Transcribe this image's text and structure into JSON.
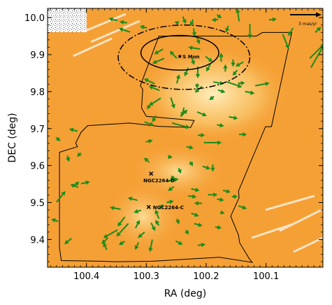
{
  "chart_data": {
    "type": "scatter",
    "title": "",
    "xlabel": "RA (deg)",
    "ylabel": "DEC (deg)",
    "xlim": [
      100.465,
      100.005
    ],
    "ylim": [
      9.325,
      10.025
    ],
    "x_inverted": true,
    "x_ticks": [
      100.4,
      100.3,
      100.2,
      100.1
    ],
    "x_tick_labels": [
      "100.4",
      "100.3",
      "100.2",
      "100.1"
    ],
    "y_ticks": [
      9.4,
      9.5,
      9.6,
      9.7,
      9.8,
      9.9,
      10.0
    ],
    "y_tick_labels": [
      "9.4",
      "9.5",
      "9.6",
      "9.7",
      "9.8",
      "9.9",
      "10.0"
    ],
    "colors": {
      "background_map": "#f5a035",
      "map_highlight": "#fde6a0",
      "arrows": "#1a8c1a",
      "outline": "#000000"
    },
    "scale_bar": {
      "label": "3 mas/yr",
      "length_masyr": 3
    },
    "annotations": [
      {
        "label": "S Mon",
        "ra": 100.244,
        "dec": 9.895,
        "marker": "star"
      },
      {
        "label": "NGC2264-D",
        "ra": 100.292,
        "dec": 9.578,
        "marker": "x"
      },
      {
        "label": "NGC2264-C",
        "ra": 100.296,
        "dec": 9.488,
        "marker": "x"
      }
    ],
    "ellipses": [
      {
        "name": "inner",
        "ra_center": 100.244,
        "dec_center": 9.905,
        "ra_radius": 0.065,
        "dec_radius": 0.047,
        "style": "solid"
      },
      {
        "name": "outer",
        "ra_center": 100.237,
        "dec_center": 9.893,
        "ra_radius": 0.11,
        "dec_radius": 0.087,
        "style": "dashdot"
      }
    ],
    "coverage_outline": [
      [
        100.279,
        9.95
      ],
      [
        100.117,
        9.95
      ],
      [
        100.116,
        9.95
      ],
      [
        100.106,
        9.96
      ],
      [
        100.057,
        9.96
      ],
      [
        100.091,
        9.705
      ],
      [
        100.101,
        9.705
      ],
      [
        100.146,
        9.531
      ],
      [
        100.145,
        9.513
      ],
      [
        100.159,
        9.463
      ],
      [
        100.146,
        9.412
      ],
      [
        100.144,
        9.391
      ],
      [
        100.128,
        9.348
      ],
      [
        100.123,
        9.338
      ],
      [
        100.178,
        9.352
      ],
      [
        100.291,
        9.341
      ],
      [
        100.352,
        9.34
      ],
      [
        100.372,
        9.341
      ],
      [
        100.442,
        9.343
      ],
      [
        100.445,
        9.377
      ],
      [
        100.445,
        9.636
      ],
      [
        100.415,
        9.651
      ],
      [
        100.418,
        9.661
      ],
      [
        100.409,
        9.69
      ],
      [
        100.398,
        9.708
      ],
      [
        100.328,
        9.715
      ],
      [
        100.279,
        9.706
      ],
      [
        100.226,
        9.703
      ],
      [
        100.22,
        9.722
      ],
      [
        100.3,
        9.733
      ],
      [
        100.308,
        9.756
      ],
      [
        100.306,
        9.806
      ],
      [
        100.31,
        9.816
      ],
      [
        100.279,
        9.95
      ]
    ],
    "vectors": [
      {
        "ra": 100.239,
        "dec": 10.003,
        "dra": -0.005,
        "ddec": -0.02
      },
      {
        "ra": 100.222,
        "dec": 9.995,
        "dra": 0.004,
        "ddec": -0.018
      },
      {
        "ra": 100.246,
        "dec": 9.985,
        "dra": 0.007,
        "ddec": 0.004
      },
      {
        "ra": 100.221,
        "dec": 9.971,
        "dra": -0.002,
        "ddec": -0.022
      },
      {
        "ra": 100.215,
        "dec": 9.946,
        "dra": -0.004,
        "ddec": -0.018
      },
      {
        "ra": 100.299,
        "dec": 9.972,
        "dra": 0.012,
        "ddec": 0.005
      },
      {
        "ra": 100.327,
        "dec": 9.961,
        "dra": 0.019,
        "ddec": 0.01
      },
      {
        "ra": 100.332,
        "dec": 9.986,
        "dra": 0.013,
        "ddec": 0.003
      },
      {
        "ra": 100.348,
        "dec": 9.992,
        "dra": 0.015,
        "ddec": 0.006
      },
      {
        "ra": 100.182,
        "dec": 10.008,
        "dra": -0.008,
        "ddec": -0.01
      },
      {
        "ra": 100.18,
        "dec": 9.995,
        "dra": 0.011,
        "ddec": -0.002
      },
      {
        "ra": 100.163,
        "dec": 9.978,
        "dra": 0.004,
        "ddec": -0.018
      },
      {
        "ra": 100.145,
        "dec": 9.99,
        "dra": 0.003,
        "ddec": 0.035
      },
      {
        "ra": 100.127,
        "dec": 9.983,
        "dra": 0.0,
        "ddec": -0.04
      },
      {
        "ra": 100.095,
        "dec": 9.994,
        "dra": -0.013,
        "ddec": 0.002
      },
      {
        "ra": 100.055,
        "dec": 9.972,
        "dra": 0.008,
        "ddec": -0.022
      },
      {
        "ra": 100.072,
        "dec": 9.955,
        "dra": -0.01,
        "ddec": -0.04
      },
      {
        "ra": 100.025,
        "dec": 9.865,
        "dra": -0.03,
        "ddec": 0.084
      },
      {
        "ra": 100.027,
        "dec": 9.89,
        "dra": -0.025,
        "ddec": 0.04
      },
      {
        "ra": 100.018,
        "dec": 9.96,
        "dra": -0.01,
        "ddec": 0.015
      },
      {
        "ra": 100.27,
        "dec": 9.89,
        "dra": 0.02,
        "ddec": -0.014
      },
      {
        "ra": 100.272,
        "dec": 9.915,
        "dra": 0.015,
        "ddec": -0.014
      },
      {
        "ra": 100.249,
        "dec": 9.89,
        "dra": 0.012,
        "ddec": 0.02
      },
      {
        "ra": 100.224,
        "dec": 9.892,
        "dra": -0.004,
        "ddec": -0.02
      },
      {
        "ra": 100.21,
        "dec": 9.915,
        "dra": 0.02,
        "ddec": 0.005
      },
      {
        "ra": 100.201,
        "dec": 9.895,
        "dra": -0.012,
        "ddec": -0.015
      },
      {
        "ra": 100.193,
        "dec": 9.874,
        "dra": 0.007,
        "ddec": -0.02
      },
      {
        "ra": 100.23,
        "dec": 9.865,
        "dra": 0.006,
        "ddec": -0.024
      },
      {
        "ra": 100.214,
        "dec": 9.868,
        "dra": 0.0,
        "ddec": -0.032
      },
      {
        "ra": 100.155,
        "dec": 9.887,
        "dra": 0.0,
        "ddec": -0.02
      },
      {
        "ra": 100.138,
        "dec": 9.88,
        "dra": 0.013,
        "ddec": -0.012
      },
      {
        "ra": 100.175,
        "dec": 9.881,
        "dra": 0.0,
        "ddec": 0.024
      },
      {
        "ra": 100.148,
        "dec": 9.858,
        "dra": 0.008,
        "ddec": -0.015
      },
      {
        "ra": 100.168,
        "dec": 9.854,
        "dra": 0.0,
        "ddec": 0.02
      },
      {
        "ra": 100.249,
        "dec": 9.822,
        "dra": -0.004,
        "ddec": 0.025
      },
      {
        "ra": 100.278,
        "dec": 9.803,
        "dra": 0.018,
        "ddec": 0.012
      },
      {
        "ra": 100.286,
        "dec": 9.821,
        "dra": 0.018,
        "ddec": 0.014
      },
      {
        "ra": 100.215,
        "dec": 9.822,
        "dra": 0.0,
        "ddec": -0.014
      },
      {
        "ra": 100.207,
        "dec": 9.814,
        "dra": 0.012,
        "ddec": -0.017
      },
      {
        "ra": 100.188,
        "dec": 9.826,
        "dra": -0.018,
        "ddec": -0.005
      },
      {
        "ra": 100.165,
        "dec": 9.826,
        "dra": -0.025,
        "ddec": -0.014
      },
      {
        "ra": 100.147,
        "dec": 9.822,
        "dra": -0.012,
        "ddec": 0.002
      },
      {
        "ra": 100.118,
        "dec": 9.816,
        "dra": -0.024,
        "ddec": 0.007
      },
      {
        "ra": 100.18,
        "dec": 9.804,
        "dra": -0.012,
        "ddec": -0.006
      },
      {
        "ra": 100.135,
        "dec": 9.8,
        "dra": -0.016,
        "ddec": -0.005
      },
      {
        "ra": 100.187,
        "dec": 9.787,
        "dra": 0.008,
        "ddec": -0.01
      },
      {
        "ra": 100.259,
        "dec": 9.784,
        "dra": -0.006,
        "ddec": -0.03
      },
      {
        "ra": 100.276,
        "dec": 9.782,
        "dra": 0.02,
        "ddec": -0.02
      },
      {
        "ra": 100.237,
        "dec": 9.757,
        "dra": 0.004,
        "ddec": -0.025
      },
      {
        "ra": 100.292,
        "dec": 9.768,
        "dra": 0.007,
        "ddec": -0.016
      },
      {
        "ra": 100.284,
        "dec": 9.735,
        "dra": 0.006,
        "ddec": -0.018
      },
      {
        "ra": 100.243,
        "dec": 9.733,
        "dra": -0.012,
        "ddec": 0.018
      },
      {
        "ra": 100.215,
        "dec": 9.745,
        "dra": -0.016,
        "ddec": -0.011
      },
      {
        "ra": 100.162,
        "dec": 9.732,
        "dra": -0.015,
        "ddec": -0.005
      },
      {
        "ra": 100.257,
        "dec": 9.715,
        "dra": -0.03,
        "ddec": -0.013
      },
      {
        "ra": 100.303,
        "dec": 9.718,
        "dra": -0.016,
        "ddec": -0.01
      },
      {
        "ra": 100.182,
        "dec": 9.71,
        "dra": -0.012,
        "ddec": -0.003
      },
      {
        "ra": 100.145,
        "dec": 9.684,
        "dra": -0.013,
        "ddec": 0.0
      },
      {
        "ra": 100.204,
        "dec": 9.662,
        "dra": -0.03,
        "ddec": 0.0
      },
      {
        "ra": 100.214,
        "dec": 9.682,
        "dra": -0.012,
        "ddec": 0.0
      },
      {
        "ra": 100.233,
        "dec": 9.651,
        "dra": -0.012,
        "ddec": -0.004
      },
      {
        "ra": 100.301,
        "dec": 9.664,
        "dra": -0.012,
        "ddec": 0.004
      },
      {
        "ra": 100.264,
        "dec": 9.624,
        "dra": -0.008,
        "ddec": -0.002
      },
      {
        "ra": 100.227,
        "dec": 9.611,
        "dra": -0.005,
        "ddec": -0.013
      },
      {
        "ra": 100.206,
        "dec": 9.598,
        "dra": -0.013,
        "ddec": -0.007
      },
      {
        "ra": 100.246,
        "dec": 9.593,
        "dra": -0.004,
        "ddec": -0.015
      },
      {
        "ra": 100.189,
        "dec": 9.603,
        "dra": 0.0,
        "ddec": -0.02
      },
      {
        "ra": 100.295,
        "dec": 9.609,
        "dra": 0.009,
        "ddec": 0.012
      },
      {
        "ra": 100.415,
        "dec": 9.693,
        "dra": 0.014,
        "ddec": 0.006
      },
      {
        "ra": 100.451,
        "dec": 9.676,
        "dra": -0.008,
        "ddec": -0.01
      },
      {
        "ra": 100.409,
        "dec": 9.634,
        "dra": 0.007,
        "ddec": -0.01
      },
      {
        "ra": 100.432,
        "dec": 9.627,
        "dra": -0.003,
        "ddec": -0.017
      },
      {
        "ra": 100.409,
        "dec": 9.551,
        "dra": -0.015,
        "ddec": 0.005
      },
      {
        "ra": 100.414,
        "dec": 9.541,
        "dra": 0.013,
        "ddec": 0.008
      },
      {
        "ra": 100.45,
        "dec": 9.501,
        "dra": -0.015,
        "ddec": 0.03
      },
      {
        "ra": 100.42,
        "dec": 9.545,
        "dra": -0.008,
        "ddec": 0.012
      },
      {
        "ra": 100.447,
        "dec": 9.449,
        "dra": 0.012,
        "ddec": 0.006
      },
      {
        "ra": 100.266,
        "dec": 9.557,
        "dra": -0.02,
        "ddec": 0.007
      },
      {
        "ra": 100.254,
        "dec": 9.571,
        "dra": 0.006,
        "ddec": -0.01
      },
      {
        "ra": 100.254,
        "dec": 9.543,
        "dra": 0.01,
        "ddec": -0.012
      },
      {
        "ra": 100.225,
        "dec": 9.537,
        "dra": -0.014,
        "ddec": -0.005
      },
      {
        "ra": 100.197,
        "dec": 9.521,
        "dra": -0.016,
        "ddec": 0.0
      },
      {
        "ra": 100.23,
        "dec": 9.518,
        "dra": -0.014,
        "ddec": -0.003
      },
      {
        "ra": 100.207,
        "dec": 9.498,
        "dra": 0.013,
        "ddec": 0.0
      },
      {
        "ra": 100.182,
        "dec": 9.509,
        "dra": -0.012,
        "ddec": -0.003
      },
      {
        "ra": 100.172,
        "dec": 9.533,
        "dra": -0.013,
        "ddec": -0.005
      },
      {
        "ra": 100.148,
        "dec": 9.516,
        "dra": 0.01,
        "ddec": 0.0
      },
      {
        "ra": 100.146,
        "dec": 9.491,
        "dra": -0.014,
        "ddec": -0.008
      },
      {
        "ra": 100.225,
        "dec": 9.471,
        "dra": -0.013,
        "ddec": -0.008
      },
      {
        "ra": 100.22,
        "dec": 9.443,
        "dra": -0.014,
        "ddec": -0.006
      },
      {
        "ra": 100.234,
        "dec": 9.425,
        "dra": -0.005,
        "ddec": -0.012
      },
      {
        "ra": 100.176,
        "dec": 9.474,
        "dra": -0.007,
        "ddec": -0.004
      },
      {
        "ra": 100.185,
        "dec": 9.434,
        "dra": -0.011,
        "ddec": -0.003
      },
      {
        "ra": 100.266,
        "dec": 9.5,
        "dra": -0.012,
        "ddec": 0.004
      },
      {
        "ra": 100.315,
        "dec": 9.506,
        "dra": 0.016,
        "ddec": 0.007
      },
      {
        "ra": 100.309,
        "dec": 9.479,
        "dra": 0.012,
        "ddec": -0.006
      },
      {
        "ra": 100.278,
        "dec": 9.482,
        "dra": -0.006,
        "ddec": 0.014
      },
      {
        "ra": 100.279,
        "dec": 9.456,
        "dra": 0.006,
        "ddec": 0.025
      },
      {
        "ra": 100.279,
        "dec": 9.438,
        "dra": 0.006,
        "ddec": 0.015
      },
      {
        "ra": 100.292,
        "dec": 9.445,
        "dra": -0.007,
        "ddec": -0.022
      },
      {
        "ra": 100.303,
        "dec": 9.42,
        "dra": 0.011,
        "ddec": -0.016
      },
      {
        "ra": 100.318,
        "dec": 9.431,
        "dra": -0.007,
        "ddec": 0.022
      },
      {
        "ra": 100.33,
        "dec": 9.443,
        "dra": 0.02,
        "ddec": -0.035
      },
      {
        "ra": 100.336,
        "dec": 9.461,
        "dra": 0.012,
        "ddec": -0.026
      },
      {
        "ra": 100.343,
        "dec": 9.482,
        "dra": 0.018,
        "ddec": 0.005
      },
      {
        "ra": 100.348,
        "dec": 9.426,
        "dra": 0.024,
        "ddec": -0.022
      },
      {
        "ra": 100.364,
        "dec": 9.404,
        "dra": 0.011,
        "ddec": -0.016
      },
      {
        "ra": 100.313,
        "dec": 9.392,
        "dra": 0.006,
        "ddec": -0.02
      },
      {
        "ra": 100.29,
        "dec": 9.4,
        "dra": 0.004,
        "ddec": -0.034
      },
      {
        "ra": 100.336,
        "dec": 9.395,
        "dra": 0.01,
        "ddec": -0.01
      },
      {
        "ra": 100.425,
        "dec": 9.403,
        "dra": 0.012,
        "ddec": -0.016
      },
      {
        "ra": 100.366,
        "dec": 9.372,
        "dra": 0.006,
        "ddec": 0.02
      },
      {
        "ra": 100.251,
        "dec": 9.396,
        "dra": -0.012,
        "ddec": -0.01
      },
      {
        "ra": 100.214,
        "dec": 9.384,
        "dra": -0.013,
        "ddec": 0.003
      },
      {
        "ra": 100.249,
        "dec": 9.456,
        "dra": -0.004,
        "ddec": -0.015
      }
    ]
  }
}
